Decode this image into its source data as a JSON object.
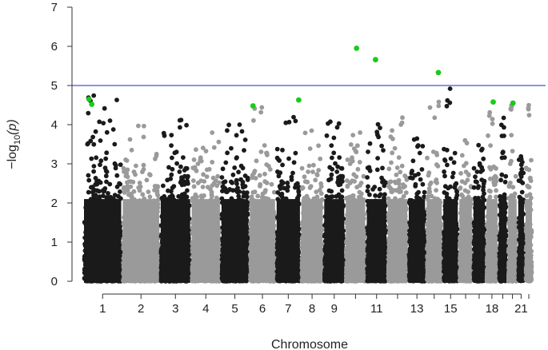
{
  "chart_data": {
    "type": "scatter",
    "subtype": "manhattan",
    "title": "",
    "xlabel": "Chromosome",
    "ylabel": "-log10(p)",
    "ylabel_parts": {
      "prefix": "−log",
      "sub": "10",
      "suffix": "(p)"
    },
    "ylim": [
      0,
      7
    ],
    "yticks": [
      0,
      1,
      2,
      3,
      4,
      5,
      6,
      7
    ],
    "significance_threshold": 5,
    "threshold_color": "#4a4de0",
    "colors": {
      "odd": "#1a1a1a",
      "even": "#9a9a9a",
      "highlight": "#19cc19"
    },
    "chromosomes": [
      {
        "chr": 1,
        "label": "1",
        "size": 248,
        "max": 4.75
      },
      {
        "chr": 2,
        "label": "2",
        "size": 242,
        "max": 4.0
      },
      {
        "chr": 3,
        "label": "3",
        "size": 198,
        "max": 4.3
      },
      {
        "chr": 4,
        "label": "4",
        "size": 190,
        "max": 3.8
      },
      {
        "chr": 5,
        "label": "5",
        "size": 181,
        "max": 4.2
      },
      {
        "chr": 6,
        "label": "6",
        "size": 171,
        "max": 4.6
      },
      {
        "chr": 7,
        "label": "7",
        "size": 159,
        "max": 4.3
      },
      {
        "chr": 8,
        "label": "8",
        "size": 145,
        "max": 3.9
      },
      {
        "chr": 9,
        "label": "9",
        "size": 138,
        "max": 4.2
      },
      {
        "chr": 10,
        "label": "",
        "size": 134,
        "max": 3.9
      },
      {
        "chr": 11,
        "label": "11",
        "size": 135,
        "max": 4.1
      },
      {
        "chr": 12,
        "label": "",
        "size": 133,
        "max": 4.2
      },
      {
        "chr": 13,
        "label": "13",
        "size": 114,
        "max": 3.9
      },
      {
        "chr": 14,
        "label": "",
        "size": 107,
        "max": 4.6
      },
      {
        "chr": 15,
        "label": "15",
        "size": 102,
        "max": 4.95
      },
      {
        "chr": 16,
        "label": "",
        "size": 90,
        "max": 3.6
      },
      {
        "chr": 17,
        "label": "",
        "size": 83,
        "max": 3.5
      },
      {
        "chr": 18,
        "label": "18",
        "size": 80,
        "max": 4.5
      },
      {
        "chr": 19,
        "label": "",
        "size": 59,
        "max": 4.2
      },
      {
        "chr": 20,
        "label": "",
        "size": 64,
        "max": 4.6
      },
      {
        "chr": 21,
        "label": "21",
        "size": 47,
        "max": 3.3
      },
      {
        "chr": 22,
        "label": "",
        "size": 51,
        "max": 4.55
      }
    ],
    "significant_points": [
      {
        "chr": 1,
        "pos": 0.15,
        "y": 4.65
      },
      {
        "chr": 1,
        "pos": 0.22,
        "y": 4.52
      },
      {
        "chr": 6,
        "pos": 0.15,
        "y": 4.48
      },
      {
        "chr": 7,
        "pos": 0.92,
        "y": 4.63
      },
      {
        "chr": 10,
        "pos": 0.55,
        "y": 5.95
      },
      {
        "chr": 11,
        "pos": 0.45,
        "y": 5.66
      },
      {
        "chr": 14,
        "pos": 0.75,
        "y": 5.33
      },
      {
        "chr": 18,
        "pos": 0.6,
        "y": 4.58
      },
      {
        "chr": 20,
        "pos": 0.55,
        "y": 4.55
      }
    ]
  }
}
